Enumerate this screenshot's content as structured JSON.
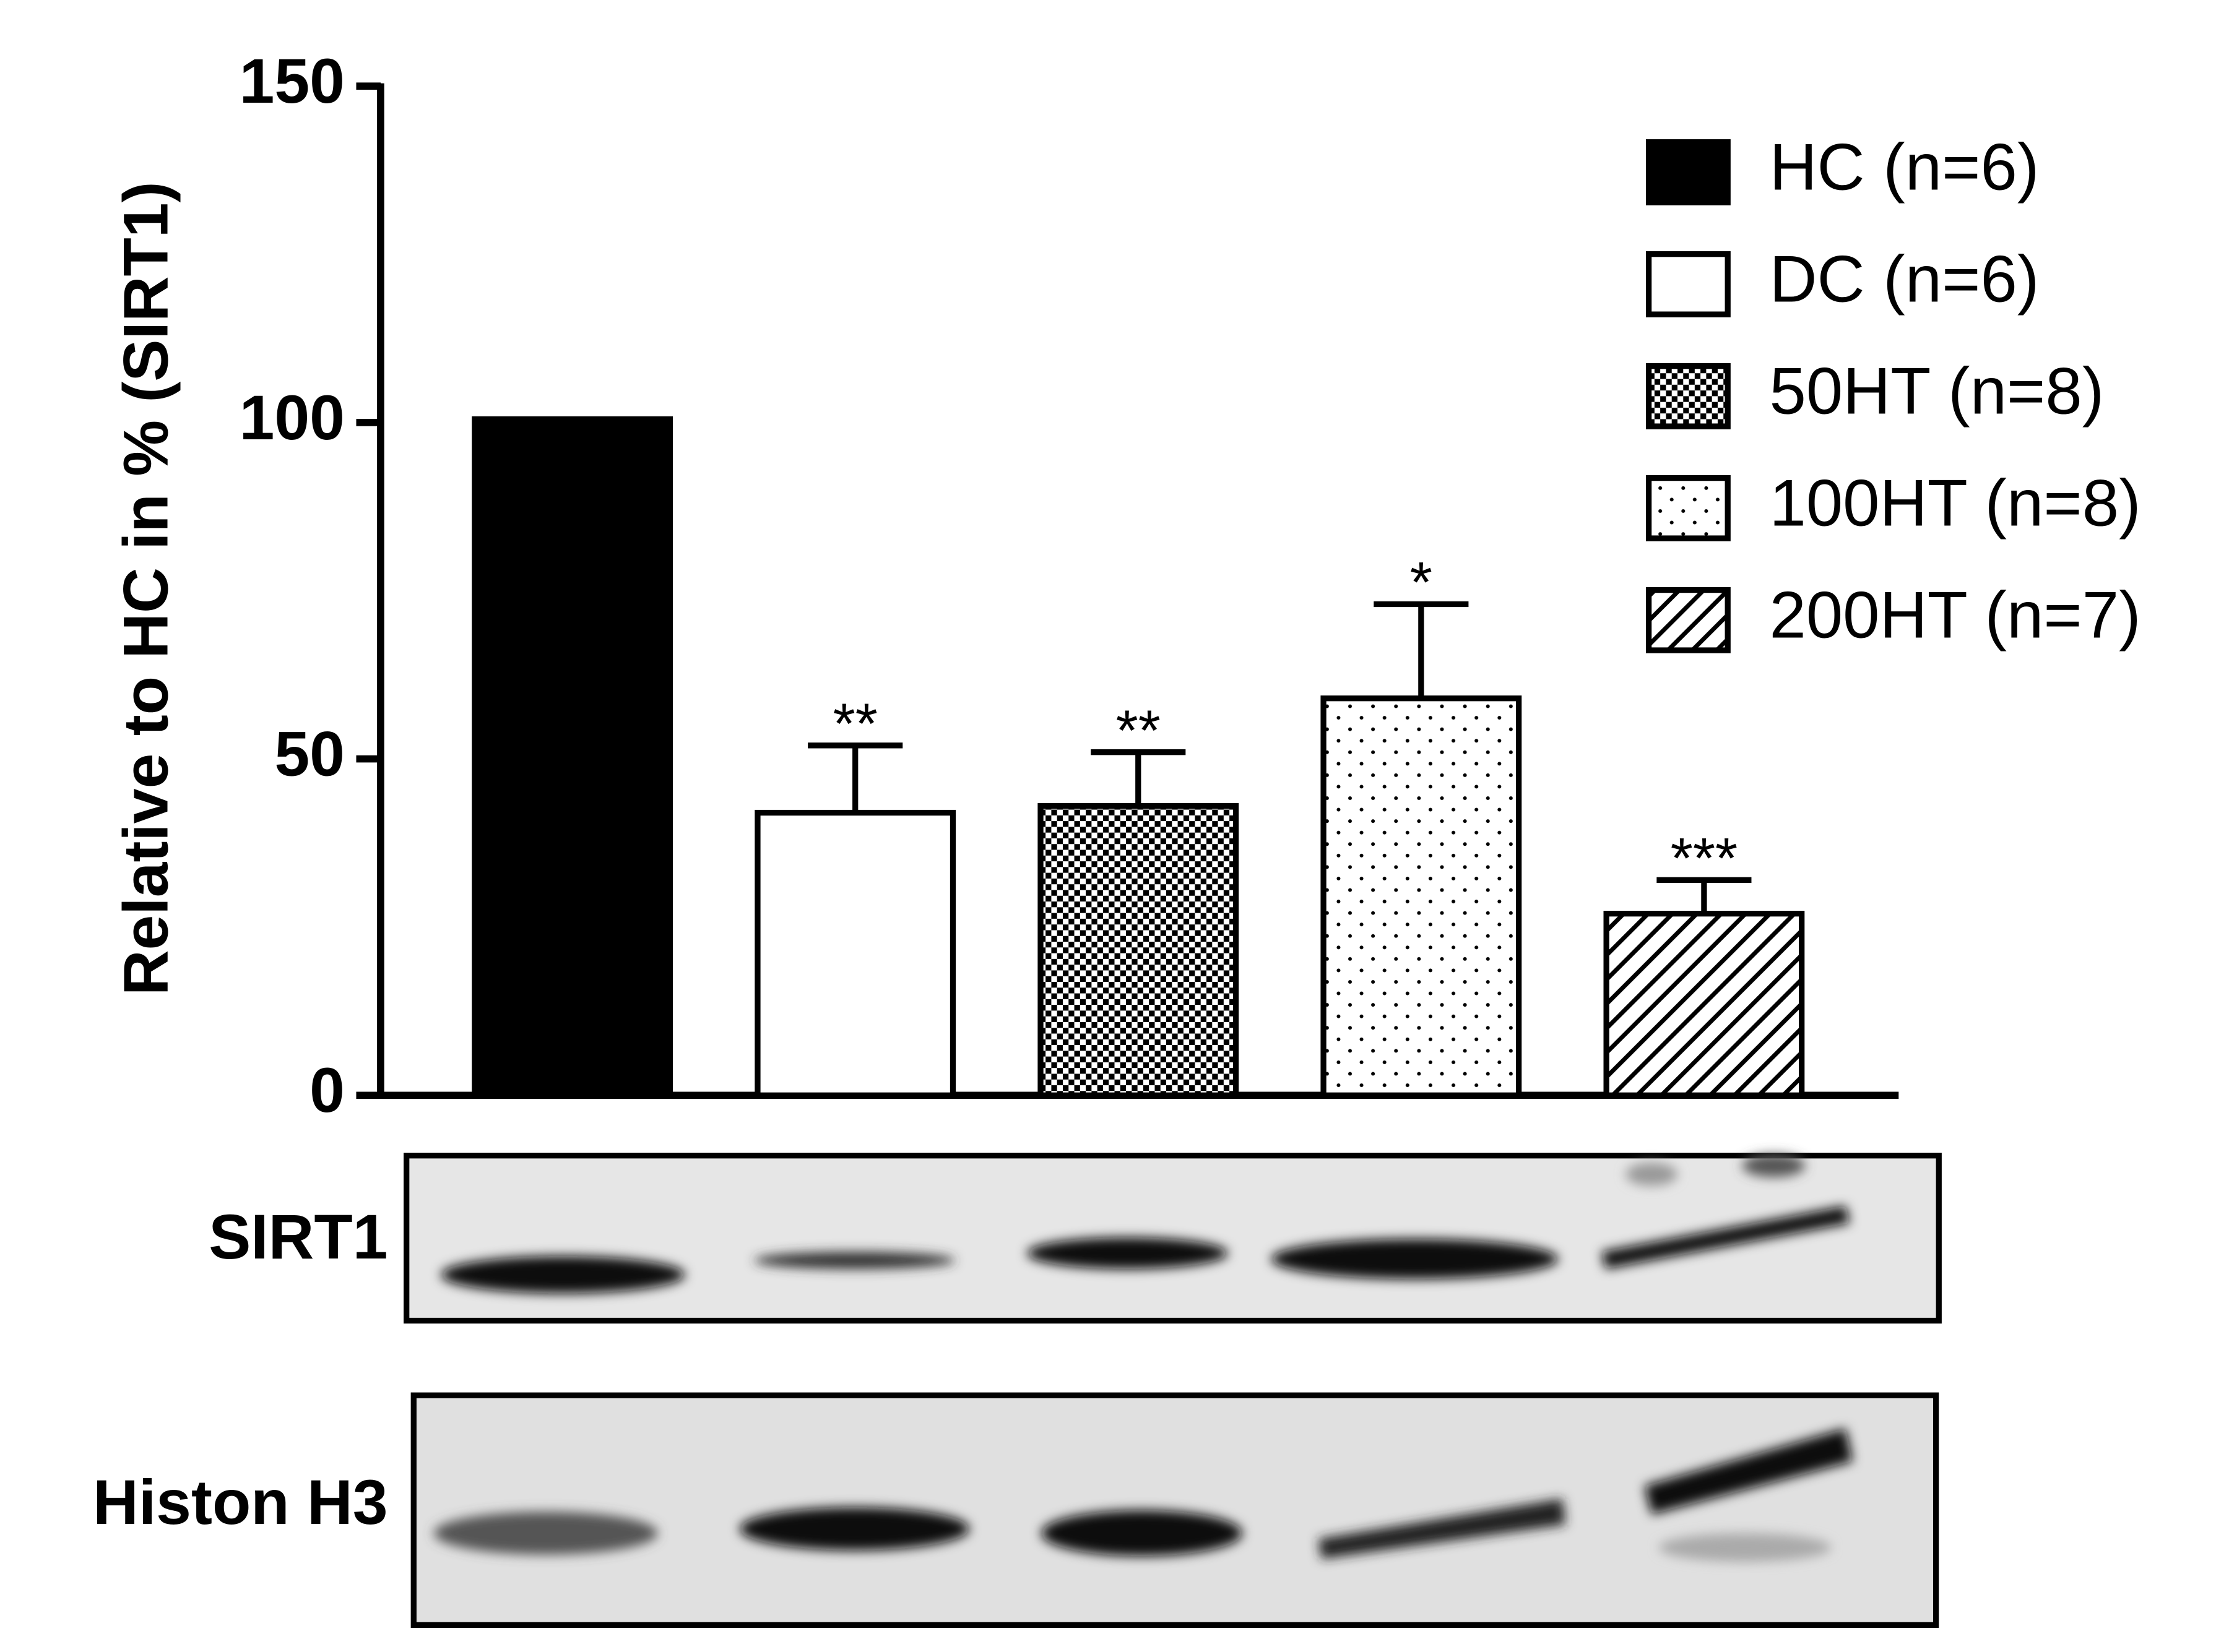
{
  "chart_data": {
    "type": "bar",
    "ylabel": "Relative to HC in % (SIRT1)",
    "ylim": [
      0,
      150
    ],
    "yticks": [
      0,
      50,
      100,
      150
    ],
    "series": [
      {
        "name": "HC (n=6)",
        "pattern": "solid",
        "values": [
          100.5
        ],
        "errors": [
          null
        ],
        "annotations": [
          null
        ]
      },
      {
        "name": "DC (n=6)",
        "pattern": "none",
        "values": [
          42
        ],
        "errors": [
          10
        ],
        "annotations": [
          "**"
        ]
      },
      {
        "name": "50HT (n=8)",
        "pattern": "checker",
        "values": [
          43
        ],
        "errors": [
          8
        ],
        "annotations": [
          "**"
        ]
      },
      {
        "name": "100HT (n=8)",
        "pattern": "dots",
        "values": [
          59
        ],
        "errors": [
          14
        ],
        "annotations": [
          "*"
        ]
      },
      {
        "name": "200HT (n=7)",
        "pattern": "hatch",
        "values": [
          27
        ],
        "errors": [
          5
        ],
        "annotations": [
          "***"
        ]
      }
    ]
  },
  "blot_labels": [
    "SIRT1",
    "Histon H3"
  ]
}
